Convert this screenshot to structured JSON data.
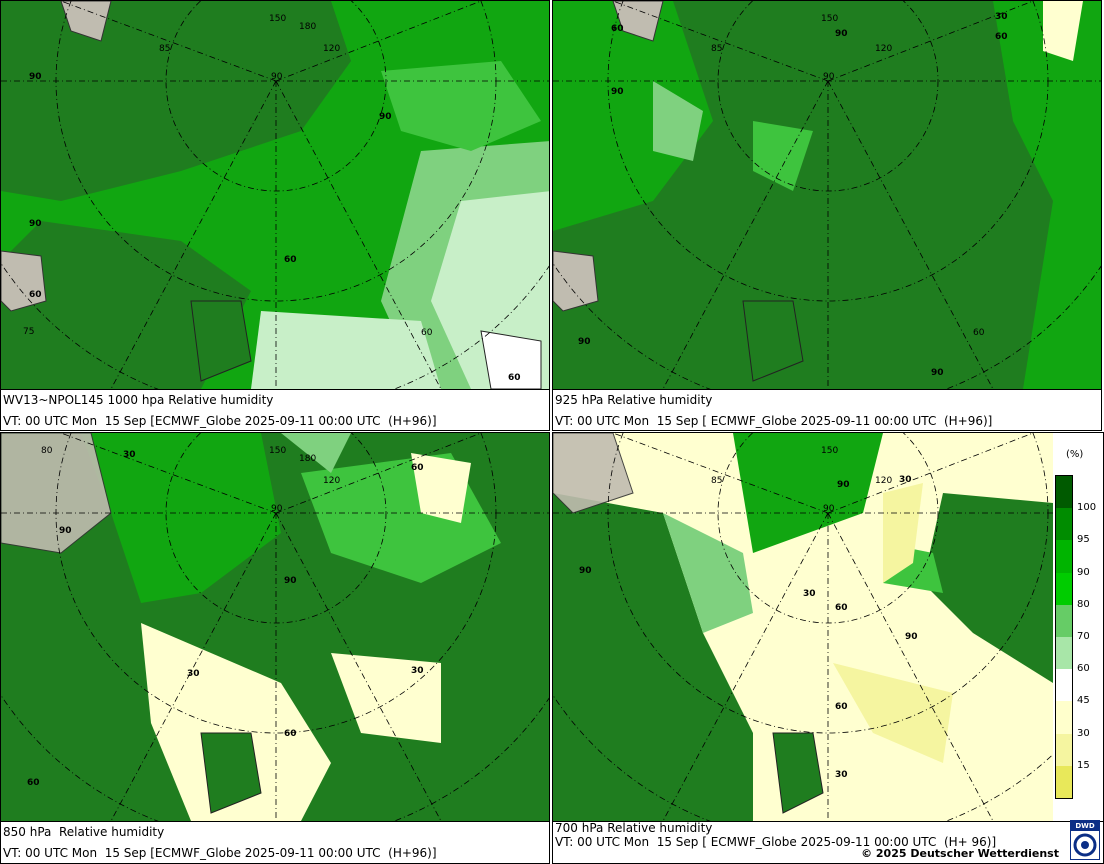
{
  "panels": [
    {
      "title": "WV13~NPOL145 1000 hpa Relative humidity",
      "subtitle": "VT: 00 UTC Mon  15 Sep [ECMWF_Globe 2025-09-11 00:00 UTC  (H+96)]",
      "iso_labels": [
        [
          "90",
          "90"
        ],
        [
          "90",
          "60"
        ],
        [
          "60",
          "90"
        ],
        [
          "60",
          "60"
        ]
      ]
    },
    {
      "title": "925 hPa Relative humidity",
      "subtitle": "VT: 00 UTC Mon  15 Sep [ ECMWF_Globe 2025-09-11 00:00 UTC  (H+96)]",
      "iso_labels": [
        [
          "30",
          "60"
        ],
        [
          "90",
          "60"
        ],
        [
          "90",
          "90"
        ],
        [
          "60",
          "90"
        ]
      ]
    },
    {
      "title": "850 hPa  Relative humidity",
      "subtitle": "VT: 00 UTC Mon  15 Sep [ECMWF_Globe 2025-09-11 00:00 UTC  (H+96)]",
      "iso_labels": [
        [
          "30",
          "60"
        ],
        [
          "90",
          "30"
        ],
        [
          "90",
          "60"
        ],
        [
          "30",
          "60"
        ]
      ]
    },
    {
      "title": "700 hPa Relative humidity",
      "subtitle": "VT: 00 UTC Mon  15 Sep [ ECMWF_Globe 2025-09-11 00:00 UTC  (H+ 96)]",
      "iso_labels": [
        [
          "90",
          "30"
        ],
        [
          "90",
          "60"
        ],
        [
          "30",
          "60"
        ],
        [
          "90",
          "30"
        ]
      ]
    }
  ],
  "graticule": {
    "longitudes": [
      "150",
      "180",
      "120",
      "90",
      "60",
      "150"
    ],
    "latitudes": [
      "90",
      "85",
      "80",
      "75"
    ]
  },
  "legend": {
    "unit": "(%)",
    "ticks": [
      "100",
      "95",
      "90",
      "80",
      "70",
      "60",
      "45",
      "30",
      "15"
    ],
    "colors": [
      "#005a00",
      "#008c00",
      "#00b400",
      "#00cc00",
      "#66cc66",
      "#a8e6a8",
      "#ffffff",
      "#ffffcc",
      "#f5f5a0",
      "#e8e85a"
    ]
  },
  "copyright": "© 2025 Deutscher Wetterdienst",
  "logo": "DWD",
  "colors": {
    "very_moist": "#1f7d1f",
    "moist": "#11a611",
    "mid": "#3ec43e",
    "light": "#7fd17f",
    "pale": "#c8efc8",
    "dry": "#ffffd0",
    "land": "#c0bcb0"
  }
}
